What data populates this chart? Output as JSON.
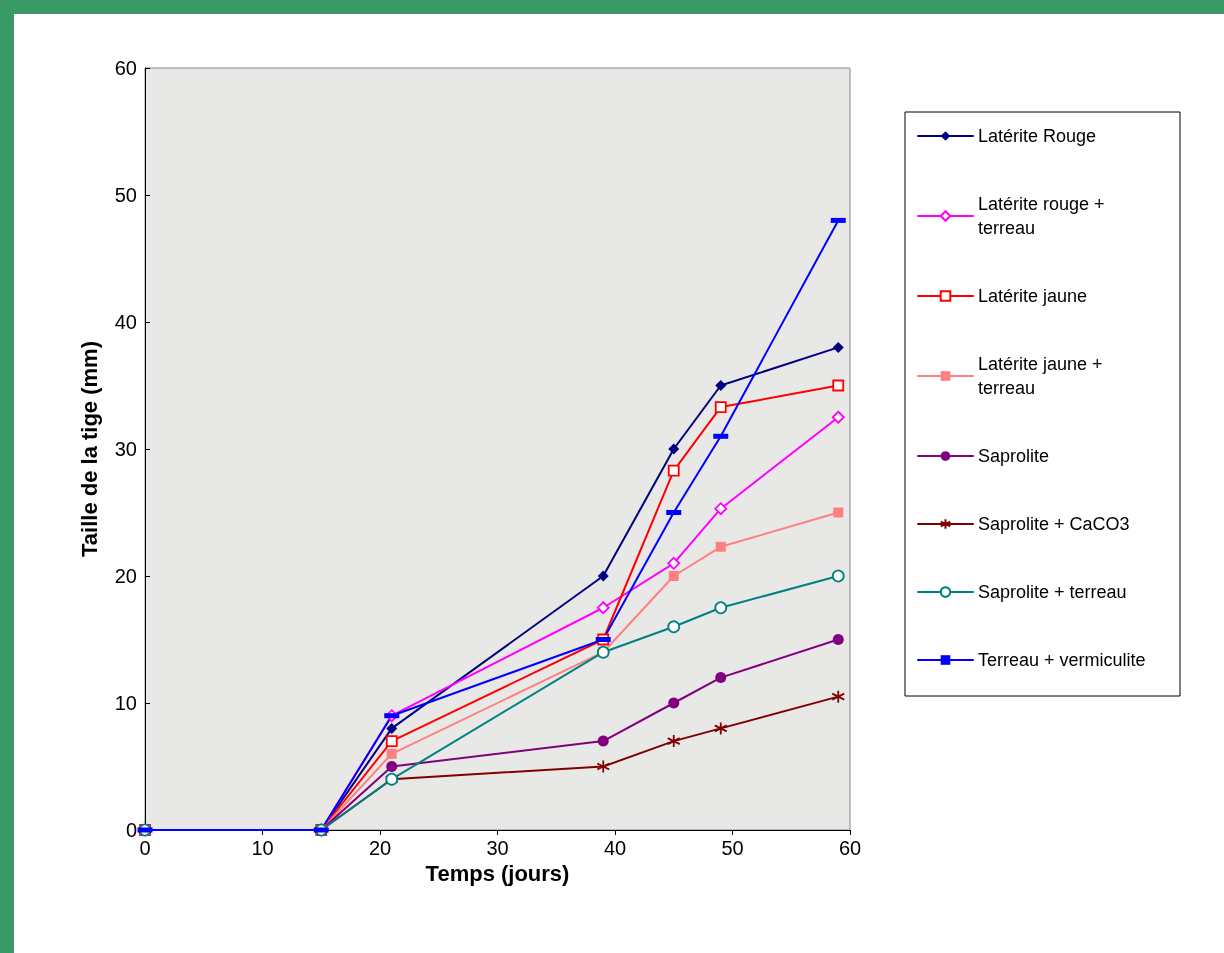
{
  "chart_data": {
    "type": "line",
    "xlabel": "Temps (jours)",
    "ylabel": "Taille de la tige (mm)",
    "x": [
      0,
      15,
      21,
      39,
      45,
      49,
      59
    ],
    "xlim": [
      0,
      60
    ],
    "xticks": [
      0,
      10,
      20,
      30,
      40,
      50,
      60
    ],
    "ylim": [
      0,
      60
    ],
    "yticks": [
      0,
      10,
      20,
      30,
      40,
      50,
      60
    ],
    "grid": false,
    "legend": "right",
    "line_style": "solid",
    "series": [
      {
        "name": "Latérite Rouge",
        "color": "#000080",
        "marker": "diamond",
        "values": [
          0,
          0,
          8,
          20,
          30,
          35,
          38
        ]
      },
      {
        "name": "Latérite rouge + terreau",
        "color": "#ff00ff",
        "marker": "diamond-open",
        "values": [
          0,
          0,
          9,
          17.5,
          21,
          25.3,
          32.5
        ]
      },
      {
        "name": "Latérite jaune",
        "color": "#ff0000",
        "marker": "square-open",
        "values": [
          0,
          0,
          7,
          15,
          28.3,
          33.3,
          35
        ]
      },
      {
        "name": "Latérite jaune + terreau",
        "color": "#ff8080",
        "marker": "square",
        "values": [
          0,
          0,
          6,
          14,
          20,
          22.3,
          25
        ]
      },
      {
        "name": "Saprolite",
        "color": "#800080",
        "marker": "circle",
        "values": [
          0,
          0,
          5,
          7,
          10,
          12,
          15
        ]
      },
      {
        "name": "Saprolite + CaCO3",
        "color": "#800000",
        "marker": "cross",
        "values": [
          0,
          0,
          4,
          5,
          7,
          8,
          10.5
        ]
      },
      {
        "name": "Saprolite + terreau",
        "color": "#008080",
        "marker": "circle-open",
        "values": [
          0,
          0,
          4,
          14,
          16,
          17.5,
          20
        ]
      },
      {
        "name": "Terreau + vermiculite",
        "color": "#0000ff",
        "marker": "square-flat",
        "values": [
          0,
          0,
          9,
          15,
          25,
          31,
          48
        ]
      }
    ]
  }
}
